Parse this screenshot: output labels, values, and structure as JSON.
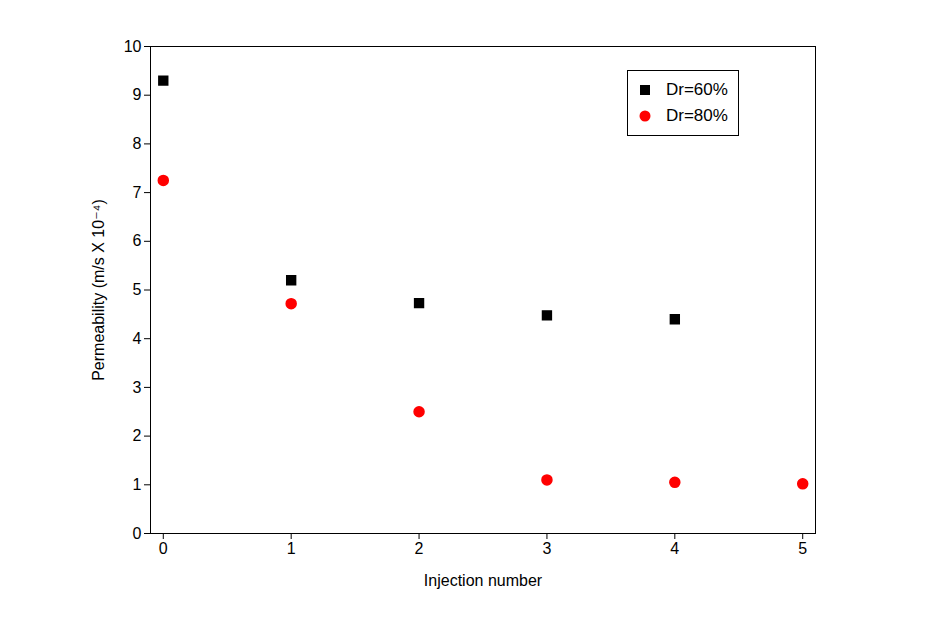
{
  "chart_data": {
    "type": "scatter",
    "x_label": "Injection number",
    "y_label": "Permeability (m/s X 10⁻⁴)",
    "x": [
      0,
      1,
      2,
      3,
      4,
      5
    ],
    "series": [
      {
        "name": "Dr=60%",
        "color": "#000000",
        "marker": "square",
        "values": [
          9.3,
          5.2,
          4.73,
          4.48,
          4.4,
          null
        ]
      },
      {
        "name": "Dr=80%",
        "color": "#ff0000",
        "marker": "circle",
        "values": [
          7.25,
          4.72,
          2.5,
          1.1,
          1.05,
          1.02
        ]
      }
    ],
    "xlim": [
      -0.1,
      5.1
    ],
    "xticks": [
      0,
      1,
      2,
      3,
      4,
      5
    ],
    "ylim": [
      0,
      10
    ],
    "yticks": [
      0,
      1,
      2,
      3,
      4,
      5,
      6,
      7,
      8,
      9,
      10
    ],
    "grid": false,
    "legend": "upper right"
  }
}
